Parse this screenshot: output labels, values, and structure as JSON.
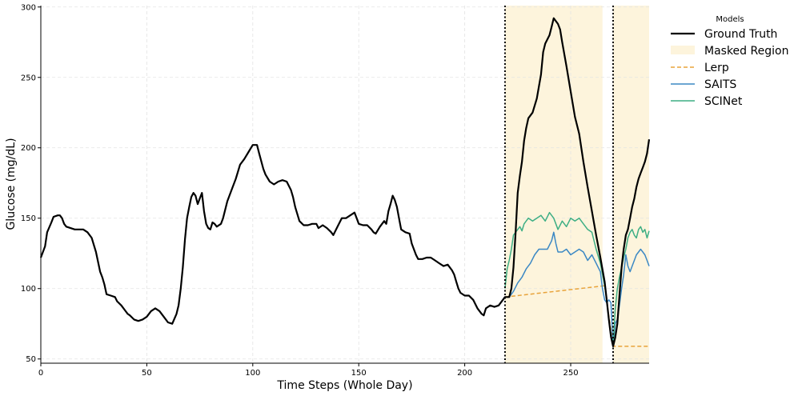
{
  "chart_data": {
    "type": "line",
    "xlabel": "Time Steps (Whole Day)",
    "ylabel": "Glucose (mg/dL)",
    "xlim": [
      0,
      287
    ],
    "ylim": [
      47,
      301
    ],
    "x_ticks": [
      0,
      50,
      100,
      150,
      200,
      250
    ],
    "y_ticks": [
      50,
      100,
      150,
      200,
      250,
      300
    ],
    "grid": true,
    "legend": {
      "title": "Models",
      "placement": "upper right, outside plot"
    },
    "masked_regions": [
      [
        219,
        265
      ],
      [
        270,
        287
      ]
    ],
    "boundary_markers": [
      219,
      270
    ],
    "series": [
      {
        "name": "Ground Truth",
        "color": "#000000",
        "style": "solid",
        "points": [
          [
            0,
            122
          ],
          [
            2,
            130
          ],
          [
            3,
            140
          ],
          [
            5,
            147
          ],
          [
            6,
            151
          ],
          [
            8,
            152
          ],
          [
            9,
            152
          ],
          [
            10,
            150
          ],
          [
            11,
            146
          ],
          [
            12,
            144
          ],
          [
            14,
            143
          ],
          [
            16,
            142
          ],
          [
            18,
            142
          ],
          [
            20,
            142
          ],
          [
            22,
            140
          ],
          [
            24,
            136
          ],
          [
            26,
            126
          ],
          [
            28,
            112
          ],
          [
            29,
            108
          ],
          [
            30,
            103
          ],
          [
            31,
            96
          ],
          [
            33,
            95
          ],
          [
            35,
            94
          ],
          [
            36,
            91
          ],
          [
            38,
            88
          ],
          [
            40,
            84
          ],
          [
            41,
            82
          ],
          [
            42,
            81
          ],
          [
            44,
            78
          ],
          [
            46,
            77
          ],
          [
            48,
            78
          ],
          [
            50,
            80
          ],
          [
            52,
            84
          ],
          [
            54,
            86
          ],
          [
            56,
            84
          ],
          [
            58,
            80
          ],
          [
            60,
            76
          ],
          [
            62,
            75
          ],
          [
            64,
            82
          ],
          [
            65,
            88
          ],
          [
            66,
            100
          ],
          [
            67,
            115
          ],
          [
            68,
            135
          ],
          [
            69,
            150
          ],
          [
            70,
            158
          ],
          [
            71,
            165
          ],
          [
            72,
            168
          ],
          [
            73,
            166
          ],
          [
            74,
            160
          ],
          [
            75,
            164
          ],
          [
            76,
            168
          ],
          [
            77,
            155
          ],
          [
            78,
            146
          ],
          [
            79,
            143
          ],
          [
            80,
            142
          ],
          [
            81,
            147
          ],
          [
            82,
            146
          ],
          [
            83,
            144
          ],
          [
            85,
            146
          ],
          [
            86,
            150
          ],
          [
            88,
            162
          ],
          [
            90,
            170
          ],
          [
            92,
            178
          ],
          [
            94,
            188
          ],
          [
            96,
            192
          ],
          [
            98,
            197
          ],
          [
            100,
            202
          ],
          [
            102,
            202
          ],
          [
            103,
            196
          ],
          [
            105,
            185
          ],
          [
            106,
            181
          ],
          [
            108,
            176
          ],
          [
            110,
            174
          ],
          [
            112,
            176
          ],
          [
            114,
            177
          ],
          [
            116,
            176
          ],
          [
            118,
            170
          ],
          [
            119,
            165
          ],
          [
            120,
            158
          ],
          [
            122,
            148
          ],
          [
            124,
            145
          ],
          [
            126,
            145
          ],
          [
            128,
            146
          ],
          [
            130,
            146
          ],
          [
            131,
            143
          ],
          [
            133,
            145
          ],
          [
            135,
            143
          ],
          [
            137,
            140
          ],
          [
            138,
            138
          ],
          [
            140,
            144
          ],
          [
            142,
            150
          ],
          [
            144,
            150
          ],
          [
            146,
            152
          ],
          [
            148,
            154
          ],
          [
            149,
            150
          ],
          [
            150,
            146
          ],
          [
            152,
            145
          ],
          [
            154,
            145
          ],
          [
            156,
            142
          ],
          [
            157,
            140
          ],
          [
            158,
            139
          ],
          [
            160,
            144
          ],
          [
            162,
            148
          ],
          [
            163,
            146
          ],
          [
            164,
            155
          ],
          [
            165,
            160
          ],
          [
            166,
            166
          ],
          [
            167,
            163
          ],
          [
            168,
            158
          ],
          [
            169,
            150
          ],
          [
            170,
            142
          ],
          [
            172,
            140
          ],
          [
            174,
            139
          ],
          [
            175,
            132
          ],
          [
            177,
            124
          ],
          [
            178,
            121
          ],
          [
            180,
            121
          ],
          [
            182,
            122
          ],
          [
            184,
            122
          ],
          [
            186,
            120
          ],
          [
            188,
            118
          ],
          [
            190,
            116
          ],
          [
            192,
            117
          ],
          [
            194,
            113
          ],
          [
            195,
            110
          ],
          [
            196,
            105
          ],
          [
            197,
            100
          ],
          [
            198,
            97
          ],
          [
            200,
            95
          ],
          [
            202,
            95
          ],
          [
            204,
            92
          ],
          [
            206,
            86
          ],
          [
            208,
            82
          ],
          [
            209,
            81
          ],
          [
            210,
            86
          ],
          [
            212,
            88
          ],
          [
            214,
            87
          ],
          [
            216,
            88
          ],
          [
            218,
            92
          ],
          [
            219,
            94
          ],
          [
            221,
            94
          ],
          [
            222,
            100
          ],
          [
            223,
            115
          ],
          [
            224,
            140
          ],
          [
            225,
            168
          ],
          [
            226,
            180
          ],
          [
            227,
            190
          ],
          [
            228,
            205
          ],
          [
            229,
            214
          ],
          [
            230,
            221
          ],
          [
            232,
            225
          ],
          [
            234,
            235
          ],
          [
            236,
            252
          ],
          [
            237,
            268
          ],
          [
            238,
            274
          ],
          [
            240,
            280
          ],
          [
            241,
            286
          ],
          [
            242,
            292
          ],
          [
            244,
            288
          ],
          [
            245,
            284
          ],
          [
            246,
            275
          ],
          [
            248,
            258
          ],
          [
            250,
            240
          ],
          [
            252,
            222
          ],
          [
            254,
            210
          ],
          [
            256,
            190
          ],
          [
            258,
            172
          ],
          [
            260,
            155
          ],
          [
            262,
            138
          ],
          [
            264,
            122
          ],
          [
            266,
            105
          ],
          [
            267,
            92
          ],
          [
            268,
            78
          ],
          [
            269,
            66
          ],
          [
            270,
            59
          ],
          [
            271,
            65
          ],
          [
            272,
            75
          ],
          [
            273,
            95
          ],
          [
            274,
            115
          ],
          [
            275,
            128
          ],
          [
            276,
            138
          ],
          [
            277,
            142
          ],
          [
            278,
            150
          ],
          [
            279,
            158
          ],
          [
            280,
            164
          ],
          [
            281,
            172
          ],
          [
            282,
            178
          ],
          [
            283,
            182
          ],
          [
            284,
            186
          ],
          [
            285,
            190
          ],
          [
            286,
            196
          ],
          [
            287,
            206
          ]
        ]
      },
      {
        "name": "Lerp",
        "color": "#E8A33A",
        "style": "dashed",
        "points": [
          [
            219,
            94
          ],
          [
            266,
            102
          ],
          [
            270,
            59
          ],
          [
            287,
            59
          ]
        ]
      },
      {
        "name": "SAITS",
        "color": "#3B88C4",
        "style": "solid",
        "points": [
          [
            219,
            94
          ],
          [
            221,
            94
          ],
          [
            222,
            96
          ],
          [
            223,
            98
          ],
          [
            225,
            104
          ],
          [
            227,
            108
          ],
          [
            229,
            114
          ],
          [
            231,
            118
          ],
          [
            233,
            124
          ],
          [
            235,
            128
          ],
          [
            237,
            128
          ],
          [
            239,
            128
          ],
          [
            241,
            134
          ],
          [
            242,
            140
          ],
          [
            243,
            132
          ],
          [
            244,
            126
          ],
          [
            246,
            126
          ],
          [
            248,
            128
          ],
          [
            250,
            124
          ],
          [
            252,
            126
          ],
          [
            254,
            128
          ],
          [
            256,
            126
          ],
          [
            258,
            120
          ],
          [
            260,
            124
          ],
          [
            262,
            118
          ],
          [
            263,
            115
          ],
          [
            264,
            112
          ],
          [
            265,
            100
          ],
          [
            266,
            92
          ],
          [
            267,
            90
          ],
          [
            268,
            92
          ],
          [
            269,
            90
          ],
          [
            270,
            59
          ],
          [
            271,
            75
          ],
          [
            272,
            78
          ],
          [
            273,
            88
          ],
          [
            274,
            100
          ],
          [
            275,
            110
          ],
          [
            276,
            124
          ],
          [
            277,
            116
          ],
          [
            278,
            112
          ],
          [
            279,
            116
          ],
          [
            280,
            120
          ],
          [
            281,
            124
          ],
          [
            282,
            126
          ],
          [
            283,
            128
          ],
          [
            284,
            126
          ],
          [
            285,
            124
          ],
          [
            286,
            120
          ],
          [
            287,
            116
          ]
        ]
      },
      {
        "name": "SCINet",
        "color": "#3DAE84",
        "style": "solid",
        "points": [
          [
            219,
            100
          ],
          [
            220,
            114
          ],
          [
            221,
            120
          ],
          [
            222,
            128
          ],
          [
            223,
            138
          ],
          [
            224,
            140
          ],
          [
            226,
            144
          ],
          [
            227,
            141
          ],
          [
            228,
            146
          ],
          [
            230,
            150
          ],
          [
            232,
            148
          ],
          [
            234,
            150
          ],
          [
            236,
            152
          ],
          [
            238,
            148
          ],
          [
            240,
            154
          ],
          [
            242,
            150
          ],
          [
            244,
            142
          ],
          [
            246,
            148
          ],
          [
            248,
            144
          ],
          [
            250,
            150
          ],
          [
            252,
            148
          ],
          [
            254,
            150
          ],
          [
            256,
            146
          ],
          [
            258,
            142
          ],
          [
            260,
            140
          ],
          [
            262,
            128
          ],
          [
            264,
            118
          ],
          [
            265,
            110
          ],
          [
            266,
            102
          ],
          [
            267,
            92
          ],
          [
            268,
            78
          ],
          [
            269,
            66
          ],
          [
            270,
            59
          ],
          [
            271,
            85
          ],
          [
            272,
            100
          ],
          [
            273,
            108
          ],
          [
            274,
            115
          ],
          [
            275,
            122
          ],
          [
            276,
            128
          ],
          [
            277,
            136
          ],
          [
            278,
            140
          ],
          [
            279,
            142
          ],
          [
            280,
            138
          ],
          [
            281,
            136
          ],
          [
            282,
            142
          ],
          [
            283,
            144
          ],
          [
            284,
            140
          ],
          [
            285,
            142
          ],
          [
            286,
            136
          ],
          [
            287,
            141
          ]
        ]
      }
    ],
    "legend_entries": [
      "Ground Truth",
      "Masked Region",
      "Lerp",
      "SAITS",
      "SCINet"
    ],
    "masked_color": "#FDF4DC"
  }
}
